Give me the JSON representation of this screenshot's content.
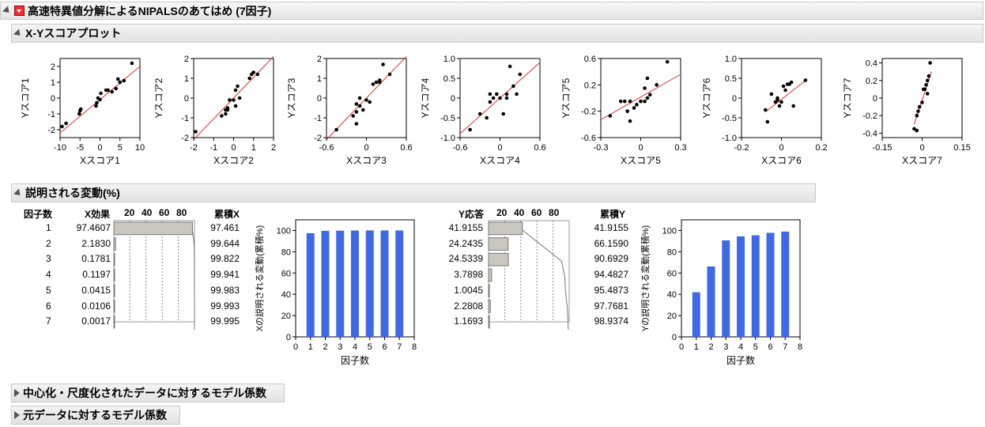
{
  "report": {
    "title": "高速特異値分解によるNIPALSのあてはめ (7因子)",
    "score_section_title": "X-Yスコアプロット",
    "variance_section_title": "説明される変動(%)",
    "collapsed_sections": [
      "中心化・尺度化されたデータに対するモデル係数",
      "元データに対するモデル係数"
    ]
  },
  "score_plots": [
    {
      "xlabel": "Xスコア1",
      "ylabel": "Yスコア1",
      "xticks": [
        "-10",
        "-5",
        "0",
        "5",
        "10"
      ],
      "yticks": [
        "2",
        "1",
        "0",
        "-1",
        "-2"
      ],
      "xlim": [
        -10,
        10
      ],
      "ylim": [
        -2.5,
        2.5
      ],
      "points": [
        [
          8,
          2.2
        ],
        [
          -8.5,
          -1.6
        ],
        [
          -9.5,
          -1.8
        ],
        [
          -5,
          -0.8
        ],
        [
          -4.8,
          -0.7
        ],
        [
          -5.2,
          -1.0
        ],
        [
          -1,
          -0.5
        ],
        [
          -0.5,
          0
        ],
        [
          0,
          -0.1
        ],
        [
          0.2,
          0.3
        ],
        [
          2,
          0.5
        ],
        [
          3,
          0.4
        ],
        [
          4,
          0.6
        ],
        [
          4.5,
          1.2
        ],
        [
          5,
          1.0
        ],
        [
          6,
          1.1
        ],
        [
          1.5,
          0.5
        ],
        [
          -0.8,
          -0.3
        ]
      ],
      "line": [
        [
          -10,
          -2.2
        ],
        [
          10,
          2.0
        ]
      ]
    },
    {
      "xlabel": "Xスコア2",
      "ylabel": "Yスコア2",
      "xticks": [
        "-2",
        "-1",
        "0",
        "1",
        "2"
      ],
      "yticks": [
        "2",
        "1",
        "0",
        "-1",
        "-2"
      ],
      "xlim": [
        -2,
        2
      ],
      "ylim": [
        -2,
        2
      ],
      "points": [
        [
          -1.9,
          -1.7
        ],
        [
          -0.6,
          -0.9
        ],
        [
          -0.4,
          -0.6
        ],
        [
          -0.3,
          -0.5
        ],
        [
          -0.4,
          -0.8
        ],
        [
          -0.2,
          -0.1
        ],
        [
          0,
          -0.1
        ],
        [
          0.1,
          0.4
        ],
        [
          0.2,
          0.6
        ],
        [
          0.3,
          0.0
        ],
        [
          0.8,
          1.0
        ],
        [
          0.9,
          1.2
        ],
        [
          1.0,
          1.3
        ],
        [
          1.2,
          1.2
        ],
        [
          0.1,
          -0.4
        ],
        [
          -0.3,
          -0.6
        ]
      ],
      "line": [
        [
          -2,
          -2.1
        ],
        [
          2,
          2.1
        ]
      ]
    },
    {
      "xlabel": "Xスコア3",
      "ylabel": "Yスコア3",
      "xticks": [
        "-0.6",
        "0",
        "0.6"
      ],
      "yticks": [
        "2",
        "1",
        "0",
        "-1",
        "-2"
      ],
      "xlim": [
        -0.6,
        0.6
      ],
      "ylim": [
        -2,
        2
      ],
      "points": [
        [
          -0.45,
          -1.6
        ],
        [
          -0.2,
          -0.9
        ],
        [
          -0.15,
          -0.7
        ],
        [
          -0.15,
          -0.3
        ],
        [
          -0.1,
          -0.4
        ],
        [
          -0.05,
          -0.6
        ],
        [
          0,
          -0.1
        ],
        [
          -0.1,
          0
        ],
        [
          0.05,
          -0.2
        ],
        [
          0.1,
          0.7
        ],
        [
          0.15,
          0.8
        ],
        [
          0.2,
          0.9
        ],
        [
          0.25,
          1.7
        ],
        [
          0.35,
          1.2
        ],
        [
          -0.15,
          -1.3
        ],
        [
          0.2,
          0.8
        ]
      ],
      "line": [
        [
          -0.6,
          -2.1
        ],
        [
          0.6,
          2.1
        ]
      ]
    },
    {
      "xlabel": "Xスコア4",
      "ylabel": "Yスコア4",
      "xticks": [
        "-0.6",
        "0",
        "0.6"
      ],
      "yticks": [
        "1.0",
        "0.5",
        "0",
        "-0.5",
        "-1.0"
      ],
      "xlim": [
        -0.6,
        0.6
      ],
      "ylim": [
        -1,
        1
      ],
      "points": [
        [
          -0.45,
          -0.8
        ],
        [
          -0.3,
          -0.4
        ],
        [
          -0.2,
          -0.5
        ],
        [
          -0.15,
          0.1
        ],
        [
          -0.1,
          0.0
        ],
        [
          -0.05,
          0.1
        ],
        [
          0,
          0.0
        ],
        [
          0.05,
          -0.4
        ],
        [
          0.1,
          0.1
        ],
        [
          0.15,
          0.8
        ],
        [
          0.2,
          0.3
        ],
        [
          0.3,
          0.6
        ],
        [
          0.25,
          0.1
        ],
        [
          0.1,
          0.0
        ],
        [
          -0.15,
          -0.1
        ]
      ],
      "line": [
        [
          -0.6,
          -0.9
        ],
        [
          0.6,
          0.9
        ]
      ]
    },
    {
      "xlabel": "Xスコア5",
      "ylabel": "Yスコア5",
      "xticks": [
        "-0.3",
        "0",
        "0.3"
      ],
      "yticks": [
        "0.6",
        "0.2",
        "-0.2",
        "-0.6"
      ],
      "xlim": [
        -0.3,
        0.3
      ],
      "ylim": [
        -0.6,
        0.6
      ],
      "points": [
        [
          -0.23,
          -0.27
        ],
        [
          -0.15,
          -0.05
        ],
        [
          -0.12,
          -0.05
        ],
        [
          -0.1,
          -0.2
        ],
        [
          -0.08,
          -0.05
        ],
        [
          -0.05,
          -0.15
        ],
        [
          -0.03,
          -0.1
        ],
        [
          0,
          -0.05
        ],
        [
          0.03,
          0.15
        ],
        [
          0.05,
          0.0
        ],
        [
          0.05,
          0.3
        ],
        [
          0.07,
          0.05
        ],
        [
          0.12,
          0.2
        ],
        [
          0.2,
          0.55
        ],
        [
          -0.08,
          -0.35
        ],
        [
          0.03,
          -0.05
        ]
      ],
      "line": [
        [
          -0.3,
          -0.33
        ],
        [
          0.3,
          0.36
        ]
      ]
    },
    {
      "xlabel": "Xスコア6",
      "ylabel": "Yスコア6",
      "xticks": [
        "-0.2",
        "0",
        "0.2"
      ],
      "yticks": [
        "1.0",
        "0.5",
        "0",
        "-0.5",
        "-1.0"
      ],
      "xlim": [
        -0.2,
        0.2
      ],
      "ylim": [
        -1,
        1
      ],
      "points": [
        [
          -0.08,
          -0.3
        ],
        [
          -0.07,
          -0.6
        ],
        [
          -0.05,
          0.1
        ],
        [
          -0.03,
          -0.1
        ],
        [
          -0.02,
          -0.05
        ],
        [
          -0.01,
          -0.2
        ],
        [
          0,
          -0.1
        ],
        [
          0.01,
          0.3
        ],
        [
          0.02,
          0.2
        ],
        [
          0.03,
          0.35
        ],
        [
          0.04,
          0.35
        ],
        [
          0.05,
          0.4
        ],
        [
          0.06,
          -0.2
        ],
        [
          0.12,
          0.45
        ],
        [
          -0.02,
          0.0
        ]
      ],
      "line": [
        [
          -0.08,
          -0.35
        ],
        [
          0.13,
          0.48
        ]
      ]
    },
    {
      "xlabel": "Xスコア7",
      "ylabel": "Yスコア7",
      "xticks": [
        "-0.15",
        "0",
        "0.15"
      ],
      "yticks": [
        "0.4",
        "0.2",
        "0",
        "-0.2",
        "-0.4"
      ],
      "xlim": [
        -0.15,
        0.15
      ],
      "ylim": [
        -0.45,
        0.45
      ],
      "points": [
        [
          -0.03,
          -0.35
        ],
        [
          -0.02,
          -0.2
        ],
        [
          -0.015,
          -0.15
        ],
        [
          -0.01,
          -0.1
        ],
        [
          0,
          -0.05
        ],
        [
          0.005,
          0.1
        ],
        [
          0.01,
          0.1
        ],
        [
          0.015,
          0.15
        ],
        [
          0.02,
          0.2
        ],
        [
          0.025,
          0.25
        ],
        [
          0.03,
          0.4
        ],
        [
          0.02,
          0.05
        ],
        [
          -0.02,
          -0.37
        ]
      ],
      "line": [
        [
          -0.03,
          -0.3
        ],
        [
          0.035,
          0.3
        ]
      ]
    }
  ],
  "variance_table": {
    "headers": {
      "factors": "因子数",
      "xeffect": "X効果",
      "bar_ticks": [
        "20",
        "40",
        "60",
        "80"
      ],
      "cumx": "累積X",
      "yresp": "Y応答",
      "cumy": "累積Y"
    },
    "rows": [
      {
        "n": "1",
        "xeffect": "97.4607",
        "cumx": "97.461",
        "yresp": "41.9155",
        "cumy": "41.9155"
      },
      {
        "n": "2",
        "xeffect": "2.1830",
        "cumx": "99.644",
        "yresp": "24.2435",
        "cumy": "66.1590"
      },
      {
        "n": "3",
        "xeffect": "0.1781",
        "cumx": "99.822",
        "yresp": "24.5339",
        "cumy": "90.6929"
      },
      {
        "n": "4",
        "xeffect": "0.1197",
        "cumx": "99.941",
        "yresp": "3.7898",
        "cumy": "94.4827"
      },
      {
        "n": "5",
        "xeffect": "0.0415",
        "cumx": "99.983",
        "yresp": "1.0045",
        "cumy": "95.4873"
      },
      {
        "n": "6",
        "xeffect": "0.0106",
        "cumx": "99.993",
        "yresp": "2.2808",
        "cumy": "97.7681"
      },
      {
        "n": "7",
        "xeffect": "0.0017",
        "cumx": "99.995",
        "yresp": "1.1693",
        "cumy": "98.9374"
      }
    ]
  },
  "chart_data": [
    {
      "type": "bar",
      "title": "",
      "xlabel": "因子数",
      "ylabel": "Xの説明される変動(累積%)",
      "x": [
        1,
        2,
        3,
        4,
        5,
        6,
        7
      ],
      "values": [
        97.461,
        99.644,
        99.822,
        99.941,
        99.983,
        99.993,
        99.995
      ],
      "xlim": [
        0,
        8
      ],
      "ylim": [
        0,
        110
      ],
      "xticks": [
        "0",
        "1",
        "2",
        "3",
        "4",
        "5",
        "6",
        "7",
        "8"
      ],
      "yticks": [
        "0",
        "20",
        "40",
        "60",
        "80",
        "100"
      ],
      "grid": false
    },
    {
      "type": "bar",
      "title": "",
      "xlabel": "因子数",
      "ylabel": "Yの説明される変動(累積%)",
      "x": [
        1,
        2,
        3,
        4,
        5,
        6,
        7
      ],
      "values": [
        41.9155,
        66.159,
        90.6929,
        94.4827,
        95.4873,
        97.7681,
        98.9374
      ],
      "xlim": [
        0,
        8
      ],
      "ylim": [
        0,
        110
      ],
      "xticks": [
        "0",
        "1",
        "2",
        "3",
        "4",
        "5",
        "6",
        "7",
        "8"
      ],
      "yticks": [
        "0",
        "20",
        "40",
        "60",
        "80",
        "100"
      ],
      "grid": false
    }
  ],
  "colors": {
    "bar": "#4169e1",
    "fit_line": "#e03030",
    "point": "#000000",
    "small_bar": "#c8c8c0"
  }
}
